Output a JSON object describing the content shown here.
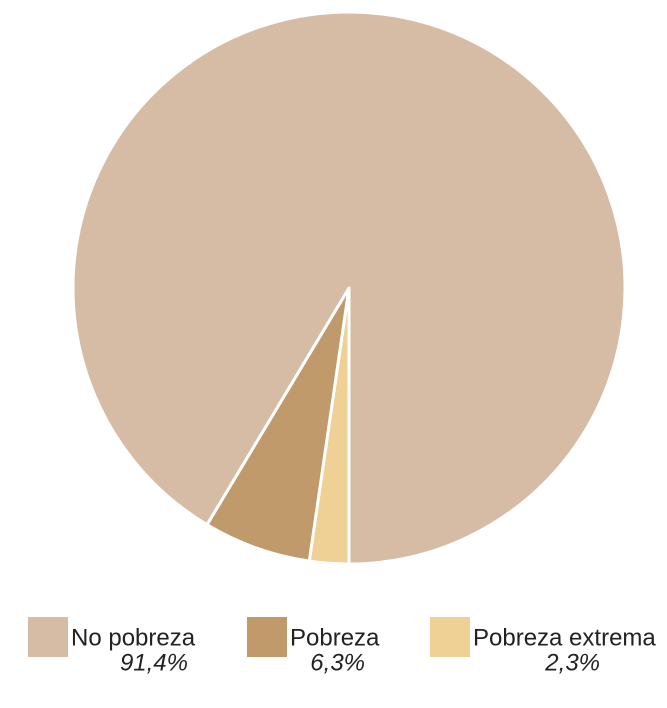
{
  "chart_data": {
    "type": "pie",
    "categories": [
      "No  pobreza",
      "Pobreza",
      "Pobreza extrema"
    ],
    "values": [
      91.4,
      6.3,
      2.3
    ],
    "value_labels": [
      "91,4%",
      "6,3%",
      "2,3%"
    ],
    "colors": [
      "#d7bca5",
      "#c09a6b",
      "#efd195"
    ]
  }
}
